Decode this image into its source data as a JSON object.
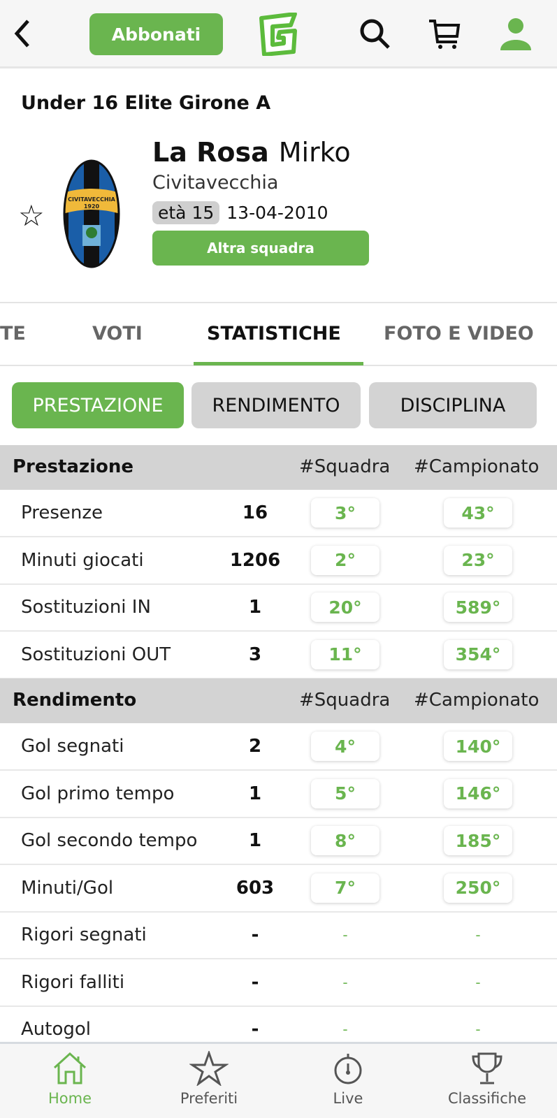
{
  "header": {
    "back_icon": "chevron-left-icon",
    "subscribe_label": "Abbonati",
    "logo_letter": "G",
    "accent": "#6ab54f"
  },
  "competition": "Under 16 Elite  Girone A",
  "player": {
    "surname": "La Rosa",
    "name": "Mirko",
    "team": "Civitavecchia",
    "age": "età 15",
    "birthdate": "13-04-2010",
    "crest_text": "CIVITAVECCHIA",
    "crest_year": "1920",
    "other_team_label": "Altra squadra"
  },
  "tabs": [
    {
      "label": "TE"
    },
    {
      "label": "VOTI"
    },
    {
      "label": "STATISTICHE",
      "active": true
    },
    {
      "label": "FOTO E VIDEO"
    }
  ],
  "filters": [
    {
      "label": "PRESTAZIONE",
      "active": true
    },
    {
      "label": "RENDIMENTO"
    },
    {
      "label": "DISCIPLINA"
    }
  ],
  "sections": [
    {
      "title": "Prestazione",
      "col_team": "#Squadra",
      "col_league": "#Campionato",
      "rows": [
        {
          "label": "Presenze",
          "value": "16",
          "team_rank": "3°",
          "league_rank": "43°"
        },
        {
          "label": "Minuti giocati",
          "value": "1206",
          "team_rank": "2°",
          "league_rank": "23°"
        },
        {
          "label": "Sostituzioni IN",
          "value": "1",
          "team_rank": "20°",
          "league_rank": "589°"
        },
        {
          "label": "Sostituzioni OUT",
          "value": "3",
          "team_rank": "11°",
          "league_rank": "354°"
        }
      ]
    },
    {
      "title": "Rendimento",
      "col_team": "#Squadra",
      "col_league": "#Campionato",
      "rows": [
        {
          "label": "Gol segnati",
          "value": "2",
          "team_rank": "4°",
          "league_rank": "140°"
        },
        {
          "label": "Gol primo tempo",
          "value": "1",
          "team_rank": "5°",
          "league_rank": "146°"
        },
        {
          "label": "Gol secondo tempo",
          "value": "1",
          "team_rank": "8°",
          "league_rank": "185°"
        },
        {
          "label": "Minuti/Gol",
          "value": "603",
          "team_rank": "7°",
          "league_rank": "250°"
        },
        {
          "label": "Rigori segnati",
          "value": "-",
          "team_rank": "-",
          "league_rank": "-"
        },
        {
          "label": "Rigori falliti",
          "value": "-",
          "team_rank": "-",
          "league_rank": "-"
        },
        {
          "label": "Autogol",
          "value": "-",
          "team_rank": "-",
          "league_rank": "-"
        }
      ]
    }
  ],
  "bottom_nav": [
    {
      "label": "Home",
      "icon": "home-icon",
      "active": true
    },
    {
      "label": "Preferiti",
      "icon": "star-icon"
    },
    {
      "label": "Live",
      "icon": "stopwatch-icon"
    },
    {
      "label": "Classifiche",
      "icon": "trophy-icon"
    }
  ]
}
